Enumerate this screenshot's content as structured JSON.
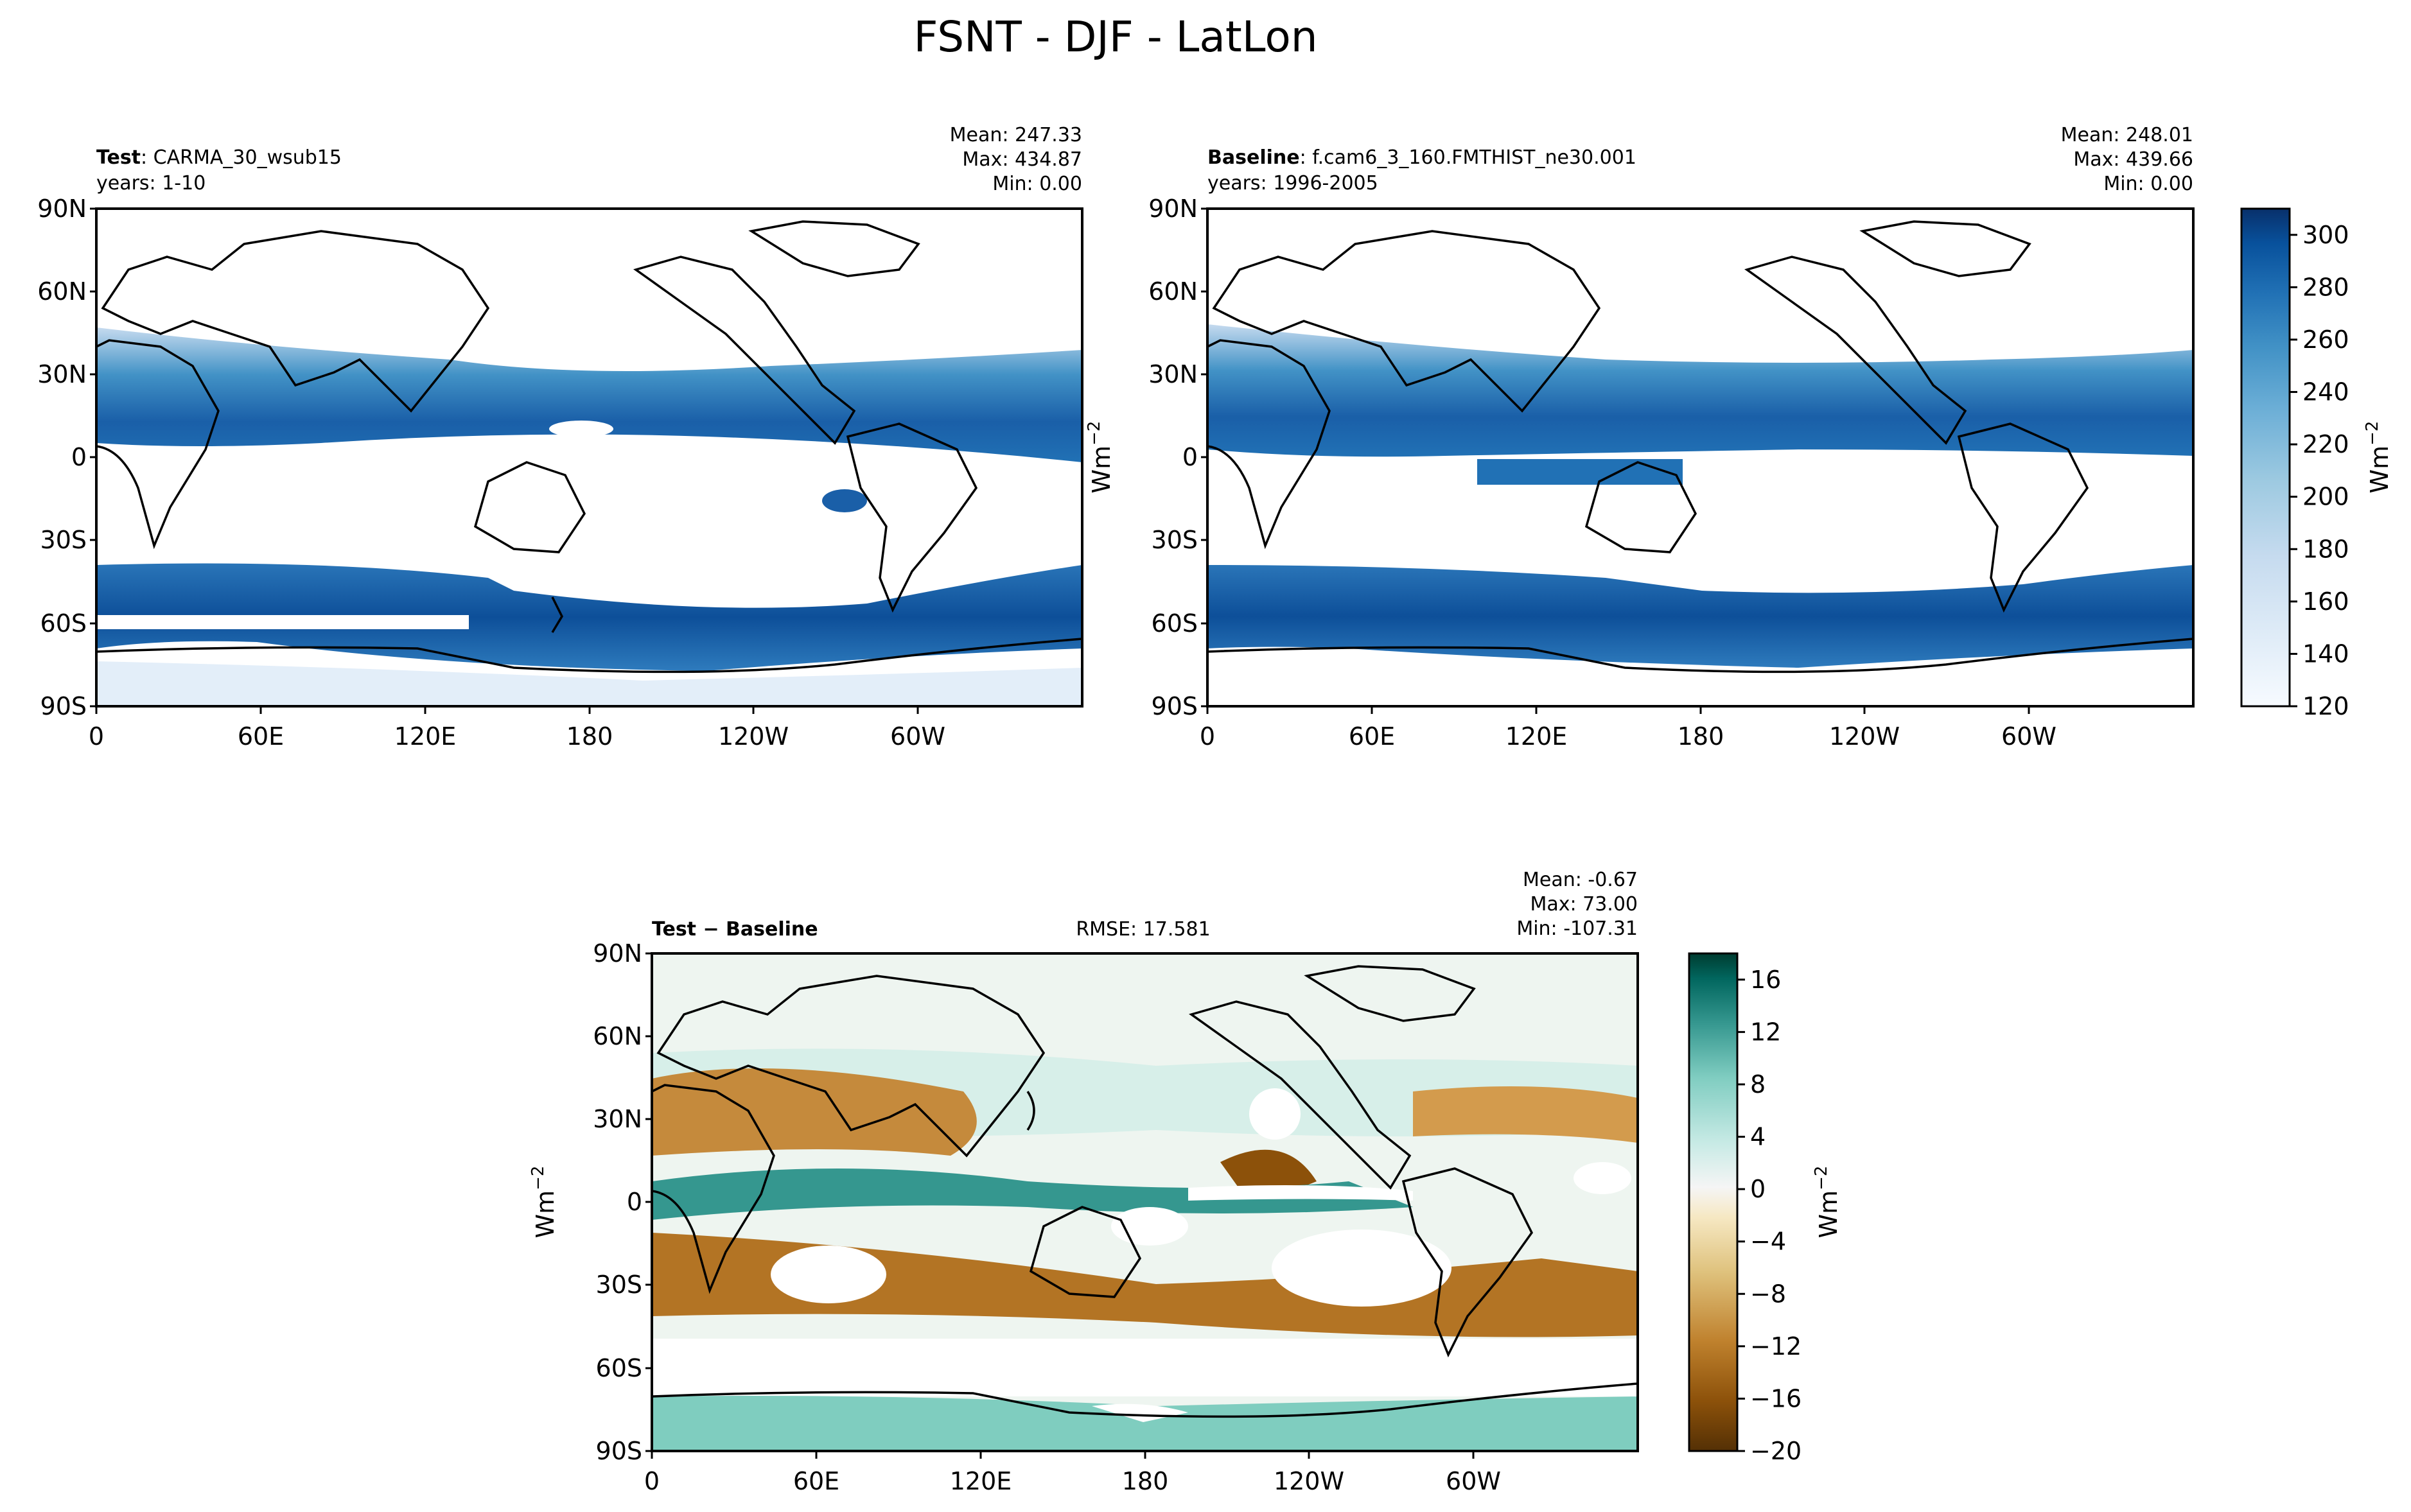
{
  "title": "FSNT - DJF - LatLon",
  "chart_data": [
    {
      "type": "heatmap",
      "panel": "test",
      "label_bold": "Test",
      "label_rest": ": CARMA_30_wsub15",
      "years": "years: 1-10",
      "stats": [
        "Mean: 247.33",
        "Max: 434.87",
        "Min:  0.00"
      ],
      "ylabel": "Wm",
      "ylabel_exp": "−2",
      "xticks": [
        "0",
        "60E",
        "120E",
        "180",
        "120W",
        "60W"
      ],
      "yticks": [
        "90N",
        "60N",
        "30N",
        "0",
        "30S",
        "60S",
        "90S"
      ],
      "xlim": [
        0,
        360
      ],
      "ylim": [
        -90,
        90
      ],
      "colormap": "Blues",
      "value_range": [
        120,
        310
      ]
    },
    {
      "type": "heatmap",
      "panel": "baseline",
      "label_bold": "Baseline",
      "label_rest": ": f.cam6_3_160.FMTHIST_ne30.001",
      "years": "years: 1996-2005",
      "stats": [
        "Mean: 248.01",
        "Max: 439.66",
        "Min:  0.00"
      ],
      "xticks": [
        "0",
        "60E",
        "120E",
        "180",
        "120W",
        "60W"
      ],
      "yticks": [
        "90N",
        "60N",
        "30N",
        "0",
        "30S",
        "60S",
        "90S"
      ],
      "xlim": [
        0,
        360
      ],
      "ylim": [
        -90,
        90
      ],
      "colormap": "Blues",
      "value_range": [
        120,
        310
      ],
      "colorbar": {
        "ticks": [
          120,
          140,
          160,
          180,
          200,
          220,
          240,
          260,
          280,
          300
        ],
        "range": [
          120,
          310
        ],
        "label": "Wm",
        "label_exp": "−2"
      }
    },
    {
      "type": "heatmap",
      "panel": "diff",
      "label_bold": "Test − Baseline",
      "rmse": "RMSE: 17.581",
      "stats": [
        "Mean: -0.67",
        "Max: 73.00",
        "Min: -107.31"
      ],
      "ylabel": "Wm",
      "ylabel_exp": "−2",
      "xticks": [
        "0",
        "60E",
        "120E",
        "180",
        "120W",
        "60W"
      ],
      "yticks": [
        "90N",
        "60N",
        "30N",
        "0",
        "30S",
        "60S",
        "90S"
      ],
      "xlim": [
        0,
        360
      ],
      "ylim": [
        -90,
        90
      ],
      "colormap": "BrBG",
      "value_range": [
        -20,
        18
      ],
      "colorbar": {
        "ticks": [
          16,
          12,
          8,
          4,
          0,
          -4,
          -8,
          -12,
          -16,
          -20
        ],
        "tick_labels": [
          "16",
          "12",
          "8",
          "4",
          "0",
          "−4",
          "−8",
          "−12",
          "−16",
          "−20"
        ],
        "range": [
          -20,
          18
        ],
        "label": "Wm",
        "label_exp": "−2"
      }
    }
  ],
  "colors": {
    "blues": [
      "#f7fbff",
      "#deebf7",
      "#c6dbef",
      "#9ecae1",
      "#6baed6",
      "#4292c6",
      "#2171b5",
      "#08519c",
      "#08306b"
    ],
    "brbg": [
      "#543005",
      "#8c510a",
      "#bf812d",
      "#dfc27d",
      "#f6e8c3",
      "#f5f5f5",
      "#c7eae5",
      "#80cdc1",
      "#35978f",
      "#01665e",
      "#003c30"
    ]
  }
}
